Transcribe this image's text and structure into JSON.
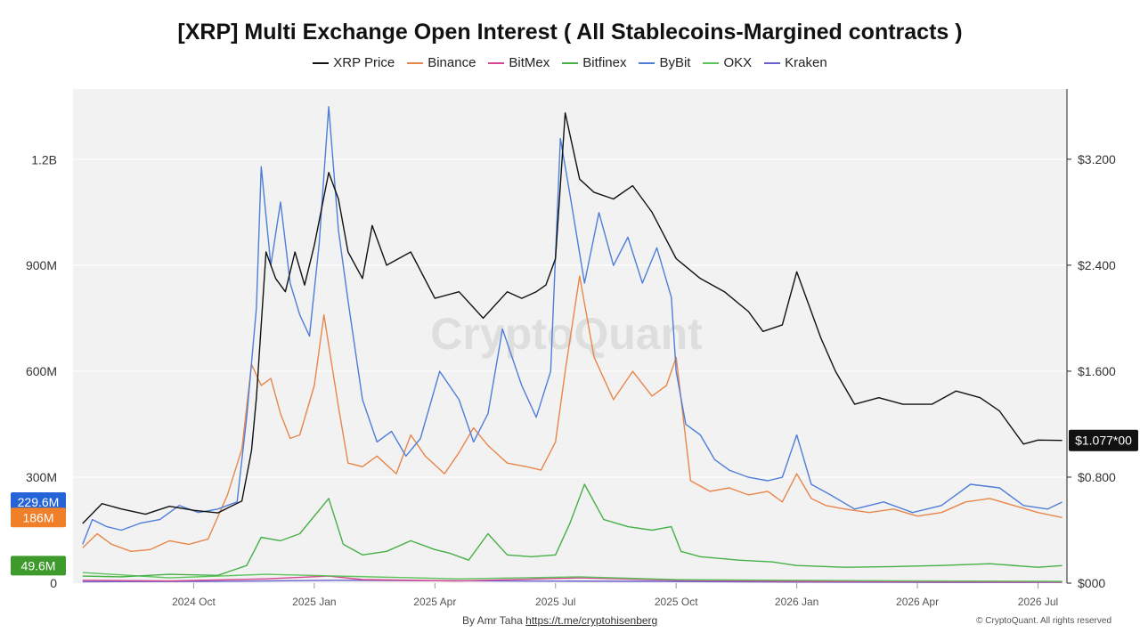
{
  "chart_data": {
    "type": "line",
    "title": "[XRP] Multi Exchange Open Interest ( All Stablecoins-Margined contracts )",
    "legend": [
      {
        "name": "XRP Price",
        "color": "#111111"
      },
      {
        "name": "Binance",
        "color": "#e8864a"
      },
      {
        "name": "BitMex",
        "color": "#d6458f"
      },
      {
        "name": "Bitfinex",
        "color": "#45b045"
      },
      {
        "name": "ByBit",
        "color": "#4f7ed9"
      },
      {
        "name": "OKX",
        "color": "#5cc45c"
      },
      {
        "name": "Kraken",
        "color": "#6a5fd0"
      }
    ],
    "legend_position": "top-center",
    "x_ticks": [
      "2024 Oct",
      "2025 Jan",
      "2025 Apr",
      "2025 Jul",
      "2025 Oct",
      "2026 Jan",
      "2026 Apr",
      "2026 Jul"
    ],
    "x_tick_times": [
      2024.75,
      2025.0,
      2025.25,
      2025.5,
      2025.75,
      2026.0,
      2026.25,
      2026.5
    ],
    "x_range": [
      2024.5,
      2026.56
    ],
    "y_left": {
      "ticks": [
        "0",
        "300M",
        "600M",
        "900M",
        "1.2B"
      ],
      "tick_values": [
        0,
        300000000,
        600000000,
        900000000,
        1200000000
      ],
      "range": [
        0,
        1400000000
      ]
    },
    "y_right": {
      "ticks": [
        "$000",
        "$0.800",
        "$1.600",
        "$2.400",
        "$3.200"
      ],
      "tick_values": [
        0,
        0.8,
        1.6,
        2.4,
        3.2
      ],
      "range": [
        0,
        3.73
      ]
    },
    "grid": true,
    "watermark": "CryptoQuant",
    "badges": [
      {
        "label": "229.6M",
        "color": "#2563d9",
        "value": 229600000,
        "axis": "left"
      },
      {
        "label": "186M",
        "color": "#f07f29",
        "value": 186000000,
        "axis": "left"
      },
      {
        "label": "49.6M",
        "color": "#3f9a2c",
        "value": 49600000,
        "axis": "left"
      },
      {
        "label": "$1.077*00",
        "color": "#111111",
        "value": 1.077,
        "axis": "right"
      }
    ],
    "series": [
      {
        "name": "XRP Price",
        "axis": "right",
        "color": "#111111",
        "x": [
          2024.52,
          2024.56,
          2024.6,
          2024.65,
          2024.7,
          2024.75,
          2024.8,
          2024.85,
          2024.87,
          2024.88,
          2024.9,
          2024.92,
          2024.94,
          2024.96,
          2024.98,
          2025.0,
          2025.03,
          2025.05,
          2025.07,
          2025.1,
          2025.12,
          2025.15,
          2025.2,
          2025.25,
          2025.3,
          2025.35,
          2025.4,
          2025.43,
          2025.46,
          2025.48,
          2025.5,
          2025.52,
          2025.55,
          2025.58,
          2025.62,
          2025.66,
          2025.7,
          2025.75,
          2025.8,
          2025.85,
          2025.9,
          2025.93,
          2025.97,
          2026.0,
          2026.05,
          2026.08,
          2026.12,
          2026.17,
          2026.22,
          2026.28,
          2026.33,
          2026.38,
          2026.42,
          2026.47,
          2026.5,
          2026.55
        ],
        "y": [
          0.45,
          0.6,
          0.56,
          0.52,
          0.58,
          0.55,
          0.53,
          0.62,
          1.0,
          1.4,
          2.5,
          2.3,
          2.2,
          2.5,
          2.25,
          2.55,
          3.1,
          2.9,
          2.5,
          2.3,
          2.7,
          2.4,
          2.5,
          2.15,
          2.2,
          2.0,
          2.2,
          2.15,
          2.2,
          2.25,
          2.45,
          3.55,
          3.05,
          2.95,
          2.9,
          3.0,
          2.8,
          2.45,
          2.3,
          2.2,
          2.05,
          1.9,
          1.95,
          2.35,
          1.85,
          1.6,
          1.35,
          1.4,
          1.35,
          1.35,
          1.45,
          1.4,
          1.3,
          1.05,
          1.08,
          1.077
        ]
      },
      {
        "name": "Binance",
        "axis": "left",
        "color": "#e8864a",
        "x": [
          2024.52,
          2024.55,
          2024.58,
          2024.62,
          2024.66,
          2024.7,
          2024.74,
          2024.78,
          2024.82,
          2024.85,
          2024.87,
          2024.89,
          2024.91,
          2024.93,
          2024.95,
          2024.97,
          2025.0,
          2025.02,
          2025.05,
          2025.07,
          2025.1,
          2025.13,
          2025.17,
          2025.2,
          2025.23,
          2025.27,
          2025.3,
          2025.33,
          2025.36,
          2025.4,
          2025.44,
          2025.47,
          2025.5,
          2025.52,
          2025.55,
          2025.58,
          2025.62,
          2025.66,
          2025.7,
          2025.73,
          2025.75,
          2025.78,
          2025.82,
          2025.86,
          2025.9,
          2025.94,
          2025.97,
          2026.0,
          2026.03,
          2026.06,
          2026.1,
          2026.15,
          2026.2,
          2026.25,
          2026.3,
          2026.35,
          2026.4,
          2026.45,
          2026.5,
          2026.55
        ],
        "y": [
          100000000,
          140000000,
          110000000,
          90000000,
          95000000,
          120000000,
          110000000,
          125000000,
          250000000,
          380000000,
          620000000,
          560000000,
          580000000,
          480000000,
          410000000,
          420000000,
          560000000,
          760000000,
          500000000,
          340000000,
          330000000,
          360000000,
          310000000,
          420000000,
          360000000,
          310000000,
          370000000,
          440000000,
          390000000,
          340000000,
          330000000,
          320000000,
          400000000,
          600000000,
          870000000,
          640000000,
          520000000,
          600000000,
          530000000,
          560000000,
          640000000,
          290000000,
          260000000,
          270000000,
          250000000,
          260000000,
          230000000,
          310000000,
          240000000,
          220000000,
          210000000,
          200000000,
          210000000,
          190000000,
          200000000,
          230000000,
          240000000,
          220000000,
          200000000,
          186000000
        ]
      },
      {
        "name": "ByBit",
        "axis": "left",
        "color": "#4f7ed9",
        "x": [
          2024.52,
          2024.54,
          2024.57,
          2024.6,
          2024.64,
          2024.68,
          2024.72,
          2024.76,
          2024.8,
          2024.84,
          2024.86,
          2024.88,
          2024.89,
          2024.91,
          2024.93,
          2024.95,
          2024.97,
          2024.99,
          2025.01,
          2025.03,
          2025.05,
          2025.07,
          2025.1,
          2025.13,
          2025.16,
          2025.19,
          2025.22,
          2025.26,
          2025.3,
          2025.33,
          2025.36,
          2025.39,
          2025.43,
          2025.46,
          2025.49,
          2025.51,
          2025.53,
          2025.56,
          2025.59,
          2025.62,
          2025.65,
          2025.68,
          2025.71,
          2025.74,
          2025.75,
          2025.77,
          2025.8,
          2025.83,
          2025.86,
          2025.9,
          2025.94,
          2025.97,
          2026.0,
          2026.03,
          2026.07,
          2026.12,
          2026.18,
          2026.24,
          2026.3,
          2026.36,
          2026.42,
          2026.47,
          2026.52,
          2026.55
        ],
        "y": [
          110000000,
          180000000,
          160000000,
          150000000,
          170000000,
          180000000,
          220000000,
          200000000,
          210000000,
          230000000,
          470000000,
          780000000,
          1180000000,
          900000000,
          1080000000,
          850000000,
          760000000,
          700000000,
          960000000,
          1350000000,
          1000000000,
          800000000,
          520000000,
          400000000,
          430000000,
          360000000,
          410000000,
          600000000,
          520000000,
          400000000,
          480000000,
          720000000,
          560000000,
          470000000,
          600000000,
          1260000000,
          1100000000,
          850000000,
          1050000000,
          900000000,
          980000000,
          850000000,
          950000000,
          810000000,
          600000000,
          450000000,
          420000000,
          350000000,
          320000000,
          300000000,
          290000000,
          300000000,
          420000000,
          280000000,
          250000000,
          210000000,
          230000000,
          200000000,
          220000000,
          280000000,
          270000000,
          220000000,
          210000000,
          229600000
        ]
      },
      {
        "name": "Bitfinex",
        "axis": "left",
        "color": "#45b045",
        "x": [
          2024.52,
          2024.6,
          2024.7,
          2024.8,
          2024.86,
          2024.89,
          2024.93,
          2024.97,
          2025.03,
          2025.06,
          2025.1,
          2025.15,
          2025.2,
          2025.25,
          2025.28,
          2025.32,
          2025.36,
          2025.4,
          2025.45,
          2025.5,
          2025.53,
          2025.56,
          2025.6,
          2025.65,
          2025.7,
          2025.74,
          2025.76,
          2025.8,
          2025.88,
          2025.95,
          2026.0,
          2026.1,
          2026.2,
          2026.3,
          2026.4,
          2026.5,
          2026.55
        ],
        "y": [
          20000000,
          18000000,
          25000000,
          22000000,
          50000000,
          130000000,
          120000000,
          140000000,
          240000000,
          110000000,
          80000000,
          90000000,
          120000000,
          95000000,
          85000000,
          65000000,
          140000000,
          80000000,
          75000000,
          80000000,
          170000000,
          280000000,
          180000000,
          160000000,
          150000000,
          160000000,
          90000000,
          75000000,
          65000000,
          60000000,
          50000000,
          45000000,
          47000000,
          50000000,
          55000000,
          45000000,
          49600000
        ]
      },
      {
        "name": "OKX",
        "axis": "left",
        "color": "#5cc45c",
        "x": [
          2024.52,
          2024.7,
          2024.9,
          2025.05,
          2025.3,
          2025.55,
          2025.75,
          2026.0,
          2026.3,
          2026.55
        ],
        "y": [
          30000000,
          15000000,
          25000000,
          20000000,
          12000000,
          18000000,
          10000000,
          8000000,
          6000000,
          5000000
        ]
      },
      {
        "name": "BitMex",
        "axis": "left",
        "color": "#d6458f",
        "x": [
          2024.52,
          2024.7,
          2024.9,
          2025.03,
          2025.1,
          2025.3,
          2025.55,
          2025.75,
          2026.0,
          2026.3,
          2026.55
        ],
        "y": [
          8000000,
          6000000,
          12000000,
          20000000,
          10000000,
          6000000,
          15000000,
          8000000,
          5000000,
          4000000,
          3000000
        ]
      },
      {
        "name": "Kraken",
        "axis": "left",
        "color": "#6a5fd0",
        "x": [
          2024.52,
          2024.8,
          2025.05,
          2025.4,
          2025.7,
          2026.0,
          2026.3,
          2026.55
        ],
        "y": [
          4000000,
          5000000,
          8000000,
          6000000,
          5000000,
          3000000,
          2000000,
          2000000
        ]
      }
    ]
  },
  "footer": {
    "author": "By Amr Taha",
    "link": "https://t.me/cryptohisenberg",
    "copyright": "© CryptoQuant. All rights reserved"
  }
}
